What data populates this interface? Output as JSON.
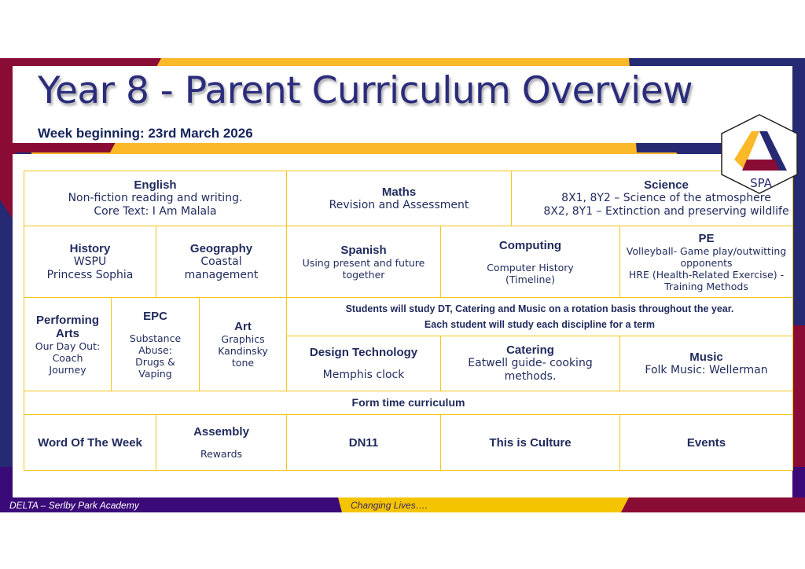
{
  "title": "Year 8 - Parent Curriculum Overview",
  "week": "Week beginning: 23rd March 2026",
  "logo": {
    "text": "SPA"
  },
  "colors": {
    "navy": "#262a72",
    "maroon": "#8a0c35",
    "gold": "#fbb829",
    "purple": "#3a0a78",
    "cell_border": "#f5c518"
  },
  "row1": [
    {
      "subject": "English",
      "lines": [
        "Non-fiction reading and writing.",
        "Core Text: I Am Malala"
      ]
    },
    {
      "subject": "Maths",
      "lines": [
        "Revision and Assessment"
      ]
    },
    {
      "subject": "Science",
      "lines": [
        "8X1, 8Y2 – Science of the atmosphere",
        "8X2, 8Y1 – Extinction  and preserving wildlife"
      ]
    }
  ],
  "row2": [
    {
      "subject": "History",
      "lines": [
        "WSPU",
        "Princess Sophia"
      ]
    },
    {
      "subject": "Geography",
      "lines": [
        "Coastal",
        "management"
      ]
    },
    {
      "subject": "Spanish",
      "lines": [
        "Using present and future",
        "together"
      ]
    },
    {
      "subject": "Computing",
      "lines": [
        "Computer History",
        "(Timeline)"
      ]
    },
    {
      "subject": "PE",
      "lines": [
        "Volleyball- Game play/outwitting",
        "opponents",
        "HRE (Health-Related Exercise) -",
        "Training Methods"
      ]
    }
  ],
  "row3": [
    {
      "subject": "Performing",
      "subject2": "Arts",
      "lines": [
        "Our Day Out:",
        "Coach",
        "Journey"
      ]
    },
    {
      "subject": "EPC",
      "lines": [
        "Substance",
        "Abuse:",
        "Drugs &",
        "Vaping"
      ]
    },
    {
      "subject": "Art",
      "lines": [
        "Graphics",
        "Kandinsky",
        "tone"
      ]
    }
  ],
  "rotation": [
    "Students will study DT, Catering and Music on a rotation basis throughout the year.",
    "Each student will study each discipline for a term"
  ],
  "rotation_subjects": [
    {
      "subject": "Design Technology",
      "lines": [
        "Memphis clock"
      ]
    },
    {
      "subject": "Catering",
      "lines": [
        "Eatwell guide- cooking",
        "methods."
      ]
    },
    {
      "subject": "Music",
      "lines": [
        "Folk Music: Wellerman"
      ]
    }
  ],
  "form_time": "Form time curriculum",
  "form_row": [
    {
      "subject": "Word Of The Week"
    },
    {
      "subject": "Assembly",
      "lines": [
        "Rewards"
      ]
    },
    {
      "subject": "DN11"
    },
    {
      "subject": "This is Culture"
    },
    {
      "subject": "Events"
    }
  ],
  "footer": {
    "left": "DELTA – Serlby Park Academy",
    "center": "Changing Lives…."
  }
}
